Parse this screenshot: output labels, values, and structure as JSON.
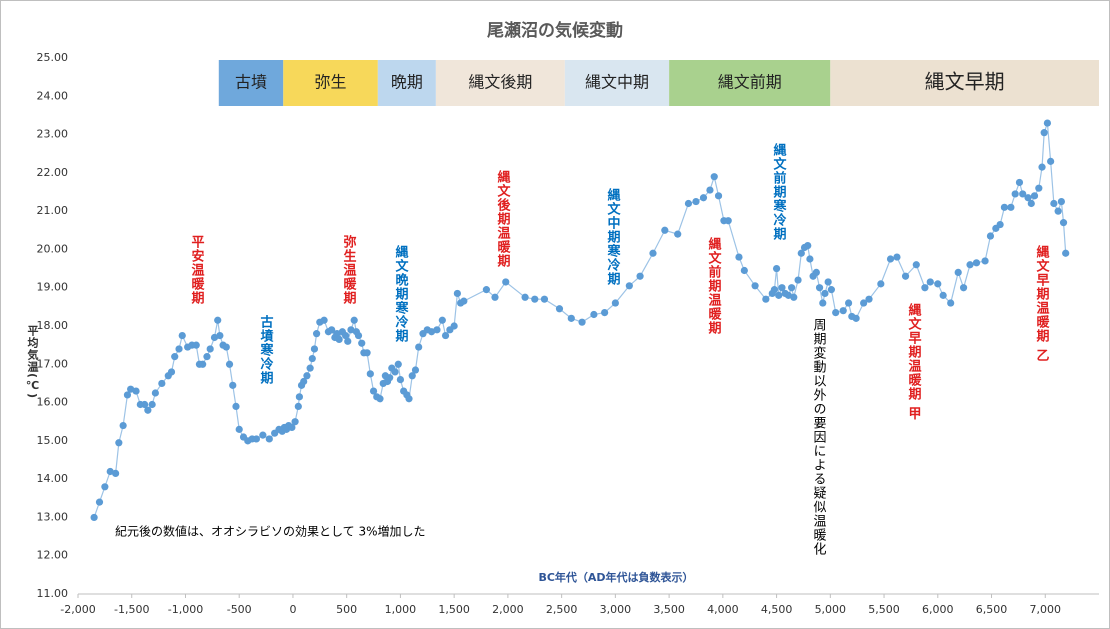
{
  "chart_data": {
    "type": "line",
    "title": "尾瀬沼の気候変動",
    "xlabel": "BC年代（AD年代は負数表示）",
    "ylabel": "平均気温(℃)",
    "xlim": [
      -2000,
      7500
    ],
    "ylim": [
      11,
      25
    ],
    "xticks": [
      {
        "value": -2000,
        "label": "-2,000"
      },
      {
        "value": -1500,
        "label": "-1,500"
      },
      {
        "value": -1000,
        "label": "-1,000"
      },
      -500,
      0,
      500,
      {
        "value": 1000,
        "label": "1,000"
      },
      {
        "value": 1500,
        "label": "1,500"
      },
      {
        "value": 2000,
        "label": "2,000"
      },
      {
        "value": 2500,
        "label": "2,500"
      },
      {
        "value": 3000,
        "label": "3,000"
      },
      {
        "value": 3500,
        "label": "3,500"
      },
      {
        "value": 4000,
        "label": "4,000"
      },
      {
        "value": 4500,
        "label": "4,500"
      },
      {
        "value": 5000,
        "label": "5,000"
      },
      {
        "value": 5500,
        "label": "5,500"
      },
      {
        "value": 6000,
        "label": "6,000"
      },
      {
        "value": 6500,
        "label": "6,500"
      },
      {
        "value": 7000,
        "label": "7,000"
      }
    ],
    "yticks": [
      {
        "value": 11,
        "label": "11.00"
      },
      {
        "value": 12,
        "label": "12.00"
      },
      {
        "value": 13,
        "label": "13.00"
      },
      {
        "value": 14,
        "label": "14.00"
      },
      {
        "value": 15,
        "label": "15.00"
      },
      {
        "value": 16,
        "label": "16.00"
      },
      {
        "value": 17,
        "label": "17.00"
      },
      {
        "value": 18,
        "label": "18.00"
      },
      {
        "value": 19,
        "label": "19.00"
      },
      {
        "value": 20,
        "label": "20.00"
      },
      {
        "value": 21,
        "label": "21.00"
      },
      {
        "value": 22,
        "label": "22.00"
      },
      {
        "value": 23,
        "label": "23.00"
      },
      {
        "value": 24,
        "label": "24.00"
      },
      {
        "value": 25,
        "label": "25.00"
      }
    ],
    "grid": false,
    "color": "#5b9bd5",
    "x": [
      -1850,
      -1800,
      -1750,
      -1700,
      -1650,
      -1620,
      -1580,
      -1540,
      -1510,
      -1460,
      -1420,
      -1380,
      -1350,
      -1310,
      -1280,
      -1220,
      -1160,
      -1130,
      -1100,
      -1060,
      -1030,
      -980,
      -940,
      -900,
      -870,
      -840,
      -800,
      -770,
      -730,
      -700,
      -680,
      -650,
      -620,
      -590,
      -560,
      -530,
      -500,
      -460,
      -420,
      -380,
      -340,
      -280,
      -220,
      -170,
      -130,
      -100,
      -80,
      -60,
      -40,
      -10,
      20,
      50,
      60,
      80,
      100,
      130,
      160,
      180,
      200,
      220,
      250,
      290,
      330,
      360,
      390,
      410,
      430,
      460,
      490,
      510,
      540,
      570,
      590,
      610,
      640,
      660,
      690,
      720,
      750,
      780,
      810,
      840,
      860,
      880,
      900,
      920,
      950,
      980,
      1000,
      1030,
      1060,
      1080,
      1110,
      1140,
      1170,
      1210,
      1250,
      1290,
      1340,
      1390,
      1420,
      1460,
      1500,
      1530,
      1560,
      1590,
      1800,
      1880,
      1980,
      2160,
      2250,
      2340,
      2480,
      2590,
      2690,
      2800,
      2900,
      3000,
      3130,
      3230,
      3350,
      3460,
      3580,
      3680,
      3750,
      3820,
      3880,
      3920,
      3960,
      4010,
      4050,
      4150,
      4200,
      4300,
      4400,
      4460,
      4480,
      4500,
      4520,
      4550,
      4580,
      4610,
      4640,
      4660,
      4700,
      4730,
      4760,
      4790,
      4810,
      4840,
      4870,
      4900,
      4930,
      4950,
      4980,
      5010,
      5050,
      5120,
      5170,
      5200,
      5240,
      5310,
      5360,
      5470,
      5560,
      5620,
      5700,
      5800,
      5880,
      5930,
      6000,
      6050,
      6120,
      6190,
      6240,
      6300,
      6360,
      6440,
      6490,
      6540,
      6580,
      6620,
      6680,
      6720,
      6760,
      6790,
      6840,
      6870,
      6900,
      6940,
      6970,
      6990,
      7020,
      7050,
      7080,
      7120,
      7150,
      7170,
      7190
    ],
    "values": [
      13.0,
      13.4,
      13.8,
      14.2,
      14.15,
      14.95,
      15.4,
      16.2,
      16.35,
      16.3,
      15.95,
      15.95,
      15.8,
      15.95,
      16.25,
      16.5,
      16.7,
      16.8,
      17.2,
      17.4,
      17.75,
      17.45,
      17.5,
      17.5,
      17.0,
      17.0,
      17.2,
      17.4,
      17.7,
      18.15,
      17.75,
      17.5,
      17.45,
      17.0,
      16.45,
      15.9,
      15.3,
      15.1,
      15.0,
      15.05,
      15.05,
      15.15,
      15.05,
      15.2,
      15.3,
      15.25,
      15.35,
      15.3,
      15.4,
      15.35,
      15.5,
      15.9,
      16.15,
      16.45,
      16.55,
      16.7,
      16.9,
      17.15,
      17.4,
      17.8,
      18.1,
      18.15,
      17.85,
      17.9,
      17.7,
      17.8,
      17.65,
      17.85,
      17.75,
      17.6,
      17.9,
      18.15,
      17.85,
      17.75,
      17.55,
      17.3,
      17.3,
      16.75,
      16.3,
      16.15,
      16.1,
      16.5,
      16.7,
      16.55,
      16.65,
      16.9,
      16.8,
      17.0,
      16.6,
      16.3,
      16.2,
      16.1,
      16.7,
      16.85,
      17.45,
      17.8,
      17.9,
      17.85,
      17.9,
      18.15,
      17.75,
      17.9,
      18.0,
      18.85,
      18.6,
      18.65,
      18.95,
      18.75,
      19.15,
      18.75,
      18.7,
      18.7,
      18.45,
      18.2,
      18.1,
      18.3,
      18.35,
      18.6,
      19.05,
      19.3,
      19.9,
      20.5,
      20.4,
      21.2,
      21.25,
      21.35,
      21.55,
      21.9,
      21.4,
      20.75,
      20.75,
      19.8,
      19.45,
      19.05,
      18.7,
      18.85,
      18.95,
      19.5,
      18.8,
      19.0,
      18.85,
      18.8,
      19.0,
      18.75,
      19.2,
      19.9,
      20.05,
      20.1,
      19.75,
      19.3,
      19.4,
      19.0,
      18.6,
      18.85,
      19.15,
      18.95,
      18.35,
      18.4,
      18.6,
      18.25,
      18.2,
      18.6,
      18.7,
      19.1,
      19.75,
      19.8,
      19.3,
      19.6,
      19.0,
      19.15,
      19.1,
      18.8,
      18.6,
      19.4,
      19.0,
      19.6,
      19.65,
      19.7,
      20.35,
      20.55,
      20.65,
      21.1,
      21.1,
      21.45,
      21.75,
      21.45,
      21.35,
      21.2,
      21.4,
      21.6,
      22.15,
      23.05,
      23.3,
      22.3,
      21.2,
      21.0,
      21.25,
      20.7,
      19.9
    ],
    "eras": [
      {
        "label": "古墳",
        "start": -690,
        "end": -90,
        "color": "#6fa8dc"
      },
      {
        "label": "弥生",
        "start": -90,
        "end": 790,
        "color": "#f7d85a"
      },
      {
        "label": "晩期",
        "start": 790,
        "end": 1330,
        "color": "#bdd7ee"
      },
      {
        "label": "縄文後期",
        "start": 1330,
        "end": 2530,
        "color": "#f0e6da"
      },
      {
        "label": "縄文中期",
        "start": 2530,
        "end": 3500,
        "color": "#d9e6f0"
      },
      {
        "label": "縄文前期",
        "start": 3500,
        "end": 5000,
        "color": "#a9d18e"
      },
      {
        "label": "縄文早期",
        "start": 5000,
        "end": 7500,
        "color": "#ece1d1"
      }
    ],
    "annotations": [
      {
        "text": "平安温暖期",
        "color": "#e02020"
      },
      {
        "text": "古墳寒冷期",
        "color": "#0070c0"
      },
      {
        "text": "弥生温暖期",
        "color": "#e02020"
      },
      {
        "text": "縄文晩期寒冷期",
        "color": "#0070c0"
      },
      {
        "text": "縄文後期温暖期",
        "color": "#e02020"
      },
      {
        "text": "縄文中期寒冷期",
        "color": "#0070c0"
      },
      {
        "text": "縄文前期温暖期",
        "color": "#e02020"
      },
      {
        "text": "縄文前期寒冷期",
        "color": "#0070c0"
      },
      {
        "text": "周期変動以外の要因による疑似温暖化",
        "color": "#000000"
      },
      {
        "text": "縄文早期温暖期 甲",
        "color": "#e02020"
      },
      {
        "text": "縄文早期温暖期 乙",
        "color": "#e02020"
      }
    ],
    "note": "紀元後の数値は、オオシラビソの効果として 3%増加した"
  }
}
